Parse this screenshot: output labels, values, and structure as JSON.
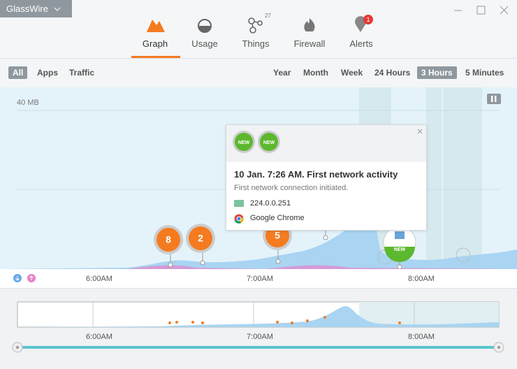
{
  "app": {
    "title": "GlassWire"
  },
  "tabs": [
    {
      "label": "Graph"
    },
    {
      "label": "Usage"
    },
    {
      "label": "Things",
      "badge": "27"
    },
    {
      "label": "Firewall"
    },
    {
      "label": "Alerts",
      "badge": "1"
    }
  ],
  "filters": [
    "All",
    "Apps",
    "Traffic"
  ],
  "ranges": [
    "Year",
    "Month",
    "Week",
    "24 Hours",
    "3 Hours",
    "5 Minutes"
  ],
  "graph": {
    "scale_label": "40 MB",
    "markers": [
      "8",
      "2",
      "5",
      "NEW"
    ],
    "time_labels": [
      "6:00AM",
      "7:00AM",
      "8:00AM"
    ]
  },
  "popup": {
    "badges": [
      "NEW",
      "NEW"
    ],
    "title": "10 Jan. 7:26 AM. First network activity",
    "subtitle": "First network connection initiated.",
    "items": [
      "224.0.0.251",
      "Google Chrome"
    ]
  },
  "overview": {
    "time_labels": [
      "6:00AM",
      "7:00AM",
      "8:00AM"
    ]
  }
}
